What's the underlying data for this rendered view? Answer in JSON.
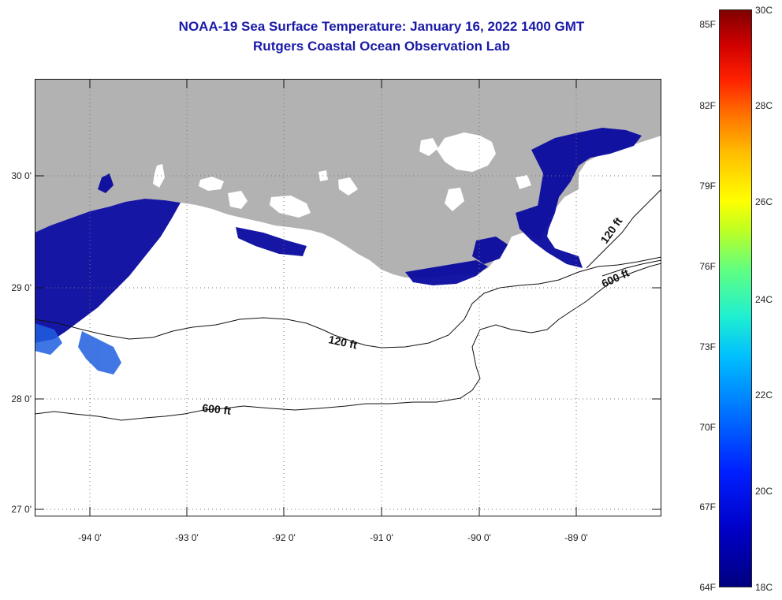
{
  "title": {
    "line1": "NOAA-19 Sea Surface Temperature:  January 16, 2022 1400 GMT",
    "line2": "Rutgers Coastal Ocean Observation Lab"
  },
  "map": {
    "lat_labels": [
      "30 0'",
      "29 0'",
      "28 0'",
      "27 0'"
    ],
    "lon_labels": [
      "-94 0'",
      "-93 0'",
      "-92 0'",
      "-91 0'",
      "-90 0'",
      "-89 0'"
    ],
    "contour_labels": [
      {
        "id": "c120w",
        "text": "120 ft"
      },
      {
        "id": "c600w",
        "text": "600 ft"
      },
      {
        "id": "c120e",
        "text": "120 ft"
      },
      {
        "id": "c600e",
        "text": "600 ft"
      }
    ],
    "colors": {
      "land": "#b2b2b2",
      "cloud": "#ffffff",
      "sst_cold": "#0a0aa0",
      "sst_mid": "#1f5fe0"
    }
  },
  "colorbar": {
    "fahrenheit_labels": [
      "85F",
      "82F",
      "79F",
      "76F",
      "73F",
      "70F",
      "67F",
      "64F"
    ],
    "celsius_labels": [
      "30C",
      "28C",
      "26C",
      "24C",
      "22C",
      "20C",
      "18C"
    ],
    "range_f": [
      64,
      86
    ],
    "range_c": [
      18,
      30
    ]
  }
}
